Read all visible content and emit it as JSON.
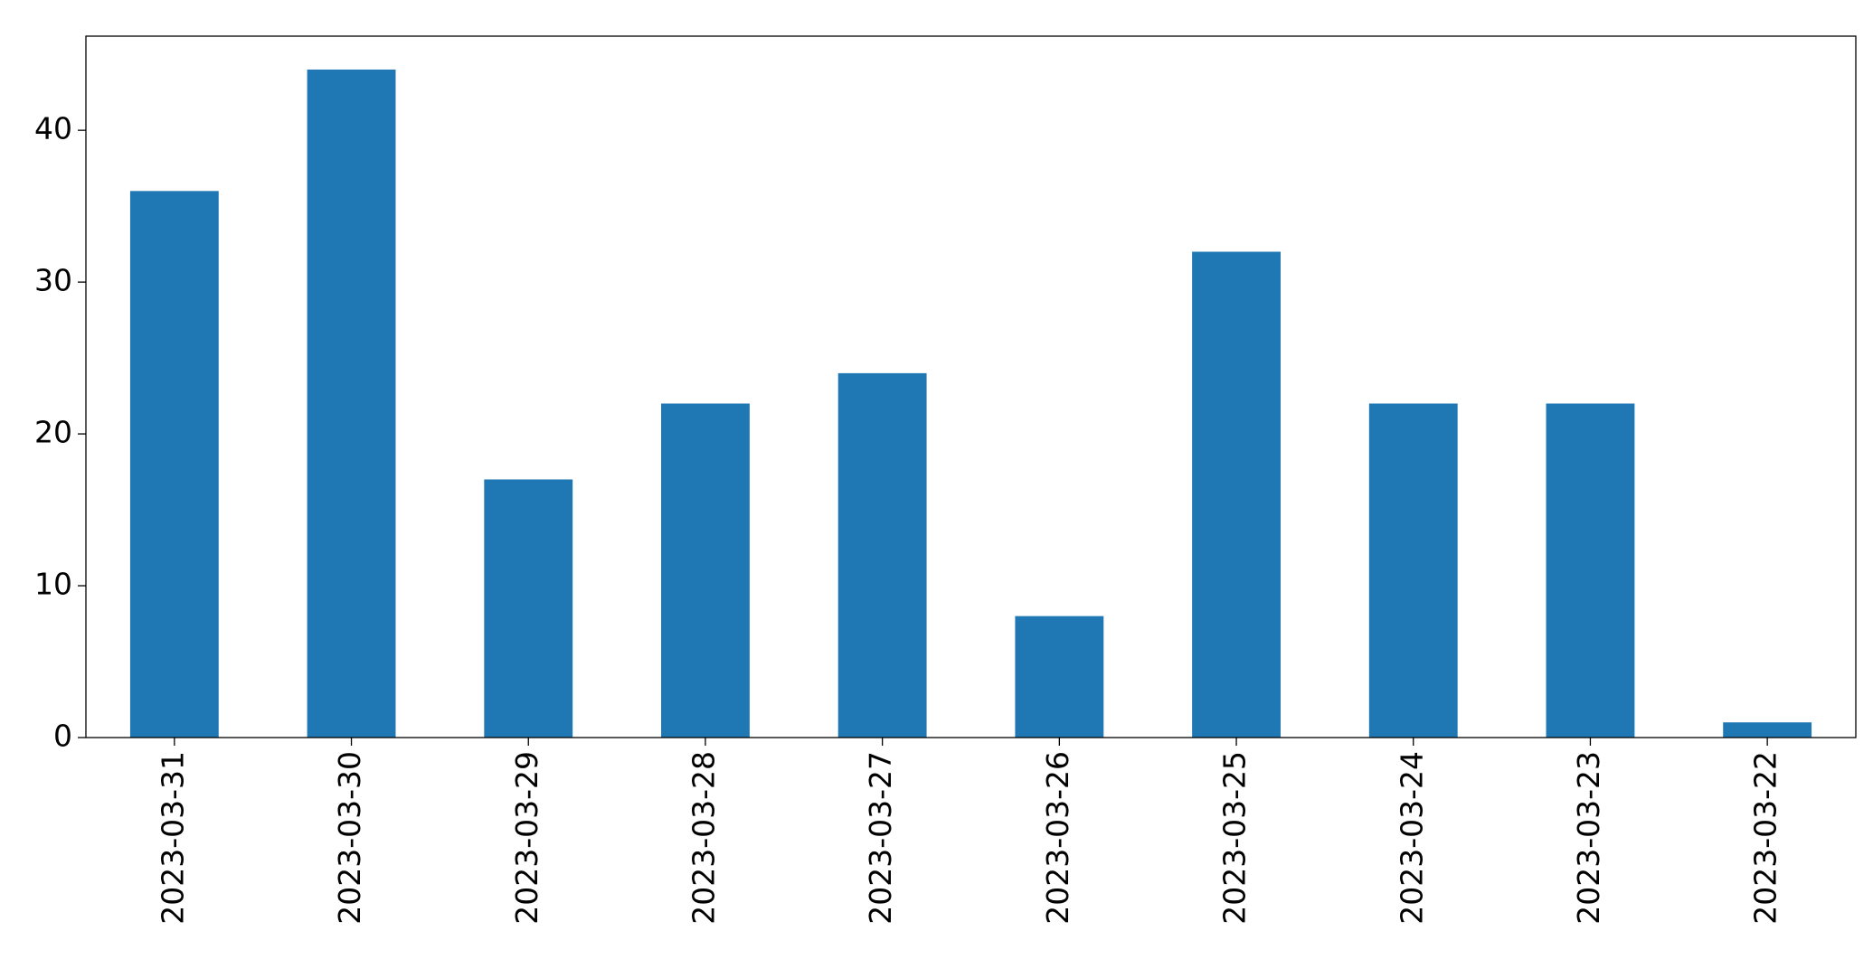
{
  "chart_data": {
    "type": "bar",
    "categories": [
      "2023-03-31",
      "2023-03-30",
      "2023-03-29",
      "2023-03-28",
      "2023-03-27",
      "2023-03-26",
      "2023-03-25",
      "2023-03-24",
      "2023-03-23",
      "2023-03-22"
    ],
    "values": [
      36,
      44,
      17,
      22,
      24,
      8,
      32,
      22,
      22,
      1
    ],
    "color": "#1f77b4",
    "ylim": [
      0,
      46.2
    ],
    "yticks": [
      0,
      10,
      20,
      30,
      40
    ],
    "grid": false
  }
}
